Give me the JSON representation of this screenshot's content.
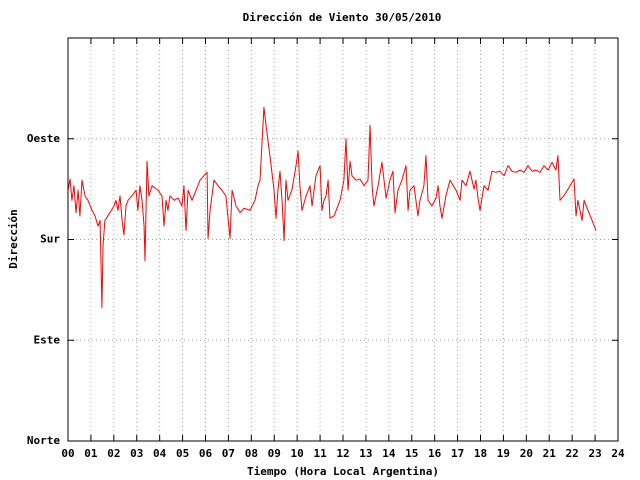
{
  "chart_data": {
    "type": "line",
    "title": "Dirección de Viento 30/05/2010",
    "x_label": "Tiempo (Hora Local Argentina)",
    "y_label": "Dirección",
    "color": "#ff0000",
    "grid": true,
    "xlim": [
      0,
      24
    ],
    "ylim": [
      0,
      360
    ],
    "xticks": [
      {
        "value": 0,
        "label": "00"
      },
      {
        "value": 1,
        "label": "01"
      },
      {
        "value": 2,
        "label": "02"
      },
      {
        "value": 3,
        "label": "03"
      },
      {
        "value": 4,
        "label": "04"
      },
      {
        "value": 5,
        "label": "05"
      },
      {
        "value": 6,
        "label": "06"
      },
      {
        "value": 7,
        "label": "07"
      },
      {
        "value": 8,
        "label": "08"
      },
      {
        "value": 9,
        "label": "09"
      },
      10,
      11,
      12,
      13,
      14,
      15,
      16,
      17,
      18,
      19,
      20,
      21,
      22,
      23,
      24
    ],
    "yticks": [
      {
        "value": 0,
        "label": "Norte"
      },
      {
        "value": 90,
        "label": "Este"
      },
      {
        "value": 180,
        "label": "Sur"
      },
      {
        "value": 270,
        "label": "Oeste"
      }
    ],
    "x": [
      0.0,
      0.09,
      0.17,
      0.26,
      0.35,
      0.44,
      0.52,
      0.61,
      0.74,
      0.87,
      1.05,
      1.18,
      1.31,
      1.4,
      1.48,
      1.53,
      1.61,
      1.83,
      2.01,
      2.09,
      2.18,
      2.27,
      2.36,
      2.44,
      2.53,
      2.62,
      2.79,
      2.97,
      3.05,
      3.14,
      3.23,
      3.32,
      3.36,
      3.45,
      3.53,
      3.67,
      3.93,
      4.1,
      4.19,
      4.28,
      4.36,
      4.45,
      4.63,
      4.8,
      4.97,
      5.06,
      5.15,
      5.24,
      5.41,
      5.59,
      5.76,
      5.93,
      6.07,
      6.11,
      6.2,
      6.37,
      6.55,
      6.72,
      6.89,
      7.07,
      7.16,
      7.33,
      7.51,
      7.68,
      7.94,
      8.16,
      8.29,
      8.38,
      8.47,
      8.55,
      8.64,
      8.81,
      8.99,
      9.08,
      9.16,
      9.25,
      9.34,
      9.43,
      9.51,
      9.6,
      9.77,
      9.95,
      10.04,
      10.12,
      10.21,
      10.39,
      10.56,
      10.65,
      10.82,
      11.0,
      11.08,
      11.17,
      11.26,
      11.35,
      11.43,
      11.61,
      11.87,
      12.04,
      12.13,
      12.22,
      12.31,
      12.39,
      12.57,
      12.74,
      12.92,
      13.09,
      13.18,
      13.27,
      13.35,
      13.53,
      13.7,
      13.88,
      14.05,
      14.18,
      14.27,
      14.4,
      14.57,
      14.75,
      14.84,
      14.92,
      15.1,
      15.27,
      15.36,
      15.53,
      15.62,
      15.71,
      15.88,
      16.06,
      16.15,
      16.23,
      16.32,
      16.49,
      16.67,
      16.93,
      17.11,
      17.19,
      17.37,
      17.54,
      17.72,
      17.8,
      17.89,
      17.98,
      18.15,
      18.33,
      18.5,
      18.68,
      18.85,
      19.03,
      19.2,
      19.37,
      19.55,
      19.72,
      19.9,
      20.07,
      20.25,
      20.42,
      20.6,
      20.77,
      20.95,
      21.12,
      21.29,
      21.38,
      21.47,
      21.64,
      21.82,
      21.99,
      22.08,
      22.17,
      22.25,
      22.34,
      22.43,
      22.52,
      22.69,
      22.87,
      23.04
    ],
    "values": [
      224,
      234,
      215,
      228,
      204,
      224,
      201,
      233,
      219,
      215,
      206,
      201,
      192,
      197,
      119,
      175,
      197,
      204,
      210,
      215,
      206,
      219,
      197,
      184,
      210,
      215,
      219,
      224,
      206,
      228,
      215,
      192,
      161,
      250,
      219,
      228,
      224,
      219,
      192,
      215,
      206,
      219,
      215,
      217,
      210,
      228,
      188,
      224,
      215,
      224,
      233,
      237,
      240,
      181,
      206,
      233,
      228,
      224,
      219,
      181,
      224,
      210,
      204,
      208,
      206,
      215,
      228,
      233,
      268,
      298,
      282,
      255,
      224,
      199,
      224,
      241,
      215,
      179,
      233,
      215,
      224,
      246,
      259,
      228,
      206,
      219,
      228,
      210,
      237,
      246,
      206,
      215,
      219,
      233,
      199,
      201,
      215,
      233,
      270,
      224,
      250,
      237,
      233,
      234,
      228,
      233,
      282,
      228,
      210,
      228,
      249,
      217,
      233,
      241,
      204,
      224,
      233,
      246,
      206,
      224,
      228,
      201,
      215,
      228,
      255,
      215,
      210,
      217,
      228,
      210,
      199,
      219,
      233,
      224,
      215,
      233,
      228,
      241,
      225,
      233,
      217,
      206,
      228,
      224,
      241,
      240,
      241,
      237,
      246,
      241,
      240,
      242,
      240,
      246,
      241,
      242,
      240,
      246,
      242,
      249,
      242,
      255,
      215,
      219,
      225,
      231,
      234,
      201,
      215,
      206,
      197,
      215,
      206,
      197,
      188
    ]
  }
}
